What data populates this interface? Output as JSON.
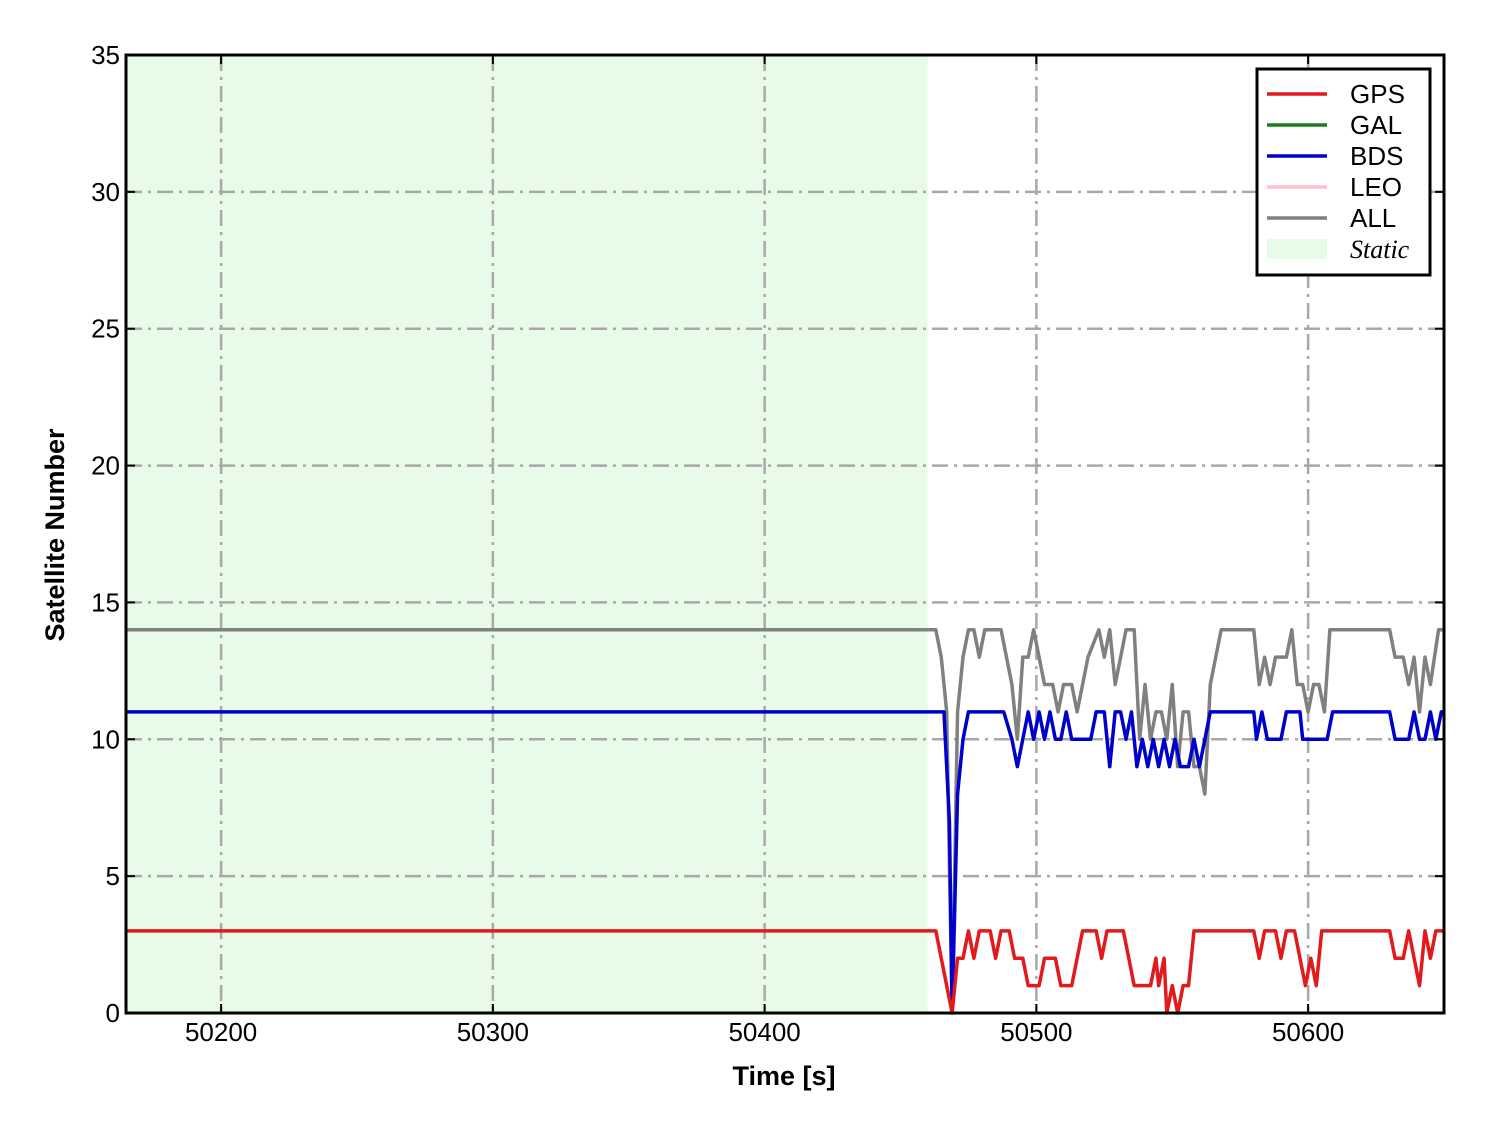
{
  "chart_data": {
    "type": "line",
    "title": "",
    "xlabel": "Time [s]",
    "ylabel": "Satellite Number",
    "xlim": [
      50165,
      50650
    ],
    "ylim": [
      0,
      35
    ],
    "xticks": [
      50200,
      50300,
      50400,
      50500,
      50600
    ],
    "yticks": [
      0,
      5,
      10,
      15,
      20,
      25,
      30,
      35
    ],
    "grid": true,
    "grid_style": "dash-dot",
    "legend_position": "top-right",
    "shaded_regions": [
      {
        "name": "Static",
        "x_start": 50165,
        "x_end": 50460,
        "color": "#e8fbe8"
      }
    ],
    "legend": [
      {
        "name": "GPS",
        "color": "#e31a1c",
        "kind": "line"
      },
      {
        "name": "GAL",
        "color": "#1a7f1a",
        "kind": "line"
      },
      {
        "name": "BDS",
        "color": "#0000cc",
        "kind": "line"
      },
      {
        "name": "LEO",
        "color": "#ffc0cb",
        "kind": "line"
      },
      {
        "name": "ALL",
        "color": "#808080",
        "kind": "line"
      },
      {
        "name": "Static",
        "color": "#e8fbe8",
        "kind": "patch"
      }
    ],
    "series": [
      {
        "name": "ALL",
        "color": "#808080",
        "points": [
          [
            50165,
            14
          ],
          [
            50463,
            14
          ],
          [
            50465,
            13
          ],
          [
            50467,
            11
          ],
          [
            50469,
            0
          ],
          [
            50471,
            11
          ],
          [
            50473,
            13
          ],
          [
            50475,
            14
          ],
          [
            50477,
            14
          ],
          [
            50479,
            13
          ],
          [
            50481,
            14
          ],
          [
            50487,
            14
          ],
          [
            50489,
            13
          ],
          [
            50491,
            12
          ],
          [
            50493,
            10
          ],
          [
            50495,
            13
          ],
          [
            50497,
            13
          ],
          [
            50499,
            14
          ],
          [
            50501,
            13
          ],
          [
            50503,
            12
          ],
          [
            50506,
            12
          ],
          [
            50508,
            11
          ],
          [
            50510,
            12
          ],
          [
            50513,
            12
          ],
          [
            50515,
            11
          ],
          [
            50517,
            12
          ],
          [
            50519,
            13
          ],
          [
            50523,
            14
          ],
          [
            50525,
            13
          ],
          [
            50527,
            14
          ],
          [
            50529,
            12
          ],
          [
            50531,
            13
          ],
          [
            50533,
            14
          ],
          [
            50536,
            14
          ],
          [
            50538,
            10
          ],
          [
            50540,
            12
          ],
          [
            50542,
            10
          ],
          [
            50544,
            11
          ],
          [
            50546,
            11
          ],
          [
            50548,
            10
          ],
          [
            50550,
            12
          ],
          [
            50552,
            9
          ],
          [
            50554,
            11
          ],
          [
            50556,
            11
          ],
          [
            50558,
            9
          ],
          [
            50560,
            9
          ],
          [
            50562,
            8
          ],
          [
            50564,
            12
          ],
          [
            50566,
            13
          ],
          [
            50568,
            14
          ],
          [
            50580,
            14
          ],
          [
            50582,
            12
          ],
          [
            50584,
            13
          ],
          [
            50586,
            12
          ],
          [
            50588,
            13
          ],
          [
            50592,
            13
          ],
          [
            50594,
            14
          ],
          [
            50596,
            12
          ],
          [
            50598,
            12
          ],
          [
            50600,
            11
          ],
          [
            50602,
            12
          ],
          [
            50604,
            12
          ],
          [
            50606,
            11
          ],
          [
            50608,
            14
          ],
          [
            50630,
            14
          ],
          [
            50632,
            13
          ],
          [
            50635,
            13
          ],
          [
            50637,
            12
          ],
          [
            50639,
            13
          ],
          [
            50641,
            11
          ],
          [
            50643,
            13
          ],
          [
            50645,
            12
          ],
          [
            50648,
            14
          ],
          [
            50650,
            14
          ]
        ]
      },
      {
        "name": "BDS",
        "color": "#0000cc",
        "points": [
          [
            50165,
            11
          ],
          [
            50463,
            11
          ],
          [
            50466,
            11
          ],
          [
            50468,
            7
          ],
          [
            50469,
            0
          ],
          [
            50471,
            8
          ],
          [
            50473,
            10
          ],
          [
            50475,
            11
          ],
          [
            50485,
            11
          ],
          [
            50488,
            11
          ],
          [
            50491,
            10
          ],
          [
            50493,
            9
          ],
          [
            50495,
            10
          ],
          [
            50497,
            11
          ],
          [
            50499,
            10
          ],
          [
            50501,
            11
          ],
          [
            50503,
            10
          ],
          [
            50505,
            11
          ],
          [
            50507,
            10
          ],
          [
            50509,
            10
          ],
          [
            50511,
            11
          ],
          [
            50513,
            10
          ],
          [
            50520,
            10
          ],
          [
            50522,
            11
          ],
          [
            50525,
            11
          ],
          [
            50527,
            9
          ],
          [
            50529,
            11
          ],
          [
            50531,
            11
          ],
          [
            50533,
            10
          ],
          [
            50535,
            11
          ],
          [
            50537,
            9
          ],
          [
            50539,
            10
          ],
          [
            50541,
            9
          ],
          [
            50543,
            10
          ],
          [
            50545,
            9
          ],
          [
            50547,
            10
          ],
          [
            50549,
            9
          ],
          [
            50551,
            10
          ],
          [
            50553,
            9
          ],
          [
            50556,
            9
          ],
          [
            50558,
            10
          ],
          [
            50560,
            9
          ],
          [
            50562,
            10
          ],
          [
            50564,
            11
          ],
          [
            50580,
            11
          ],
          [
            50581,
            10
          ],
          [
            50583,
            11
          ],
          [
            50585,
            10
          ],
          [
            50590,
            10
          ],
          [
            50592,
            11
          ],
          [
            50597,
            11
          ],
          [
            50598,
            10
          ],
          [
            50607,
            10
          ],
          [
            50609,
            11
          ],
          [
            50630,
            11
          ],
          [
            50632,
            10
          ],
          [
            50637,
            10
          ],
          [
            50639,
            11
          ],
          [
            50641,
            10
          ],
          [
            50643,
            10
          ],
          [
            50645,
            11
          ],
          [
            50647,
            10
          ],
          [
            50649,
            11
          ],
          [
            50650,
            11
          ]
        ]
      },
      {
        "name": "GPS",
        "color": "#e31a1c",
        "points": [
          [
            50165,
            3
          ],
          [
            50463,
            3
          ],
          [
            50465,
            2
          ],
          [
            50467,
            1
          ],
          [
            50469,
            0
          ],
          [
            50471,
            2
          ],
          [
            50473,
            2
          ],
          [
            50475,
            3
          ],
          [
            50477,
            2
          ],
          [
            50479,
            3
          ],
          [
            50483,
            3
          ],
          [
            50485,
            2
          ],
          [
            50487,
            3
          ],
          [
            50490,
            3
          ],
          [
            50492,
            2
          ],
          [
            50495,
            2
          ],
          [
            50497,
            1
          ],
          [
            50501,
            1
          ],
          [
            50503,
            2
          ],
          [
            50507,
            2
          ],
          [
            50509,
            1
          ],
          [
            50513,
            1
          ],
          [
            50515,
            2
          ],
          [
            50517,
            3
          ],
          [
            50522,
            3
          ],
          [
            50524,
            2
          ],
          [
            50526,
            3
          ],
          [
            50529,
            3
          ],
          [
            50532,
            3
          ],
          [
            50534,
            2
          ],
          [
            50536,
            1
          ],
          [
            50542,
            1
          ],
          [
            50544,
            2
          ],
          [
            50545,
            1
          ],
          [
            50547,
            2
          ],
          [
            50548,
            0
          ],
          [
            50550,
            1
          ],
          [
            50552,
            0
          ],
          [
            50554,
            1
          ],
          [
            50556,
            1
          ],
          [
            50558,
            3
          ],
          [
            50580,
            3
          ],
          [
            50582,
            2
          ],
          [
            50584,
            3
          ],
          [
            50588,
            3
          ],
          [
            50590,
            2
          ],
          [
            50592,
            3
          ],
          [
            50595,
            3
          ],
          [
            50597,
            2
          ],
          [
            50599,
            1
          ],
          [
            50601,
            2
          ],
          [
            50603,
            1
          ],
          [
            50605,
            3
          ],
          [
            50630,
            3
          ],
          [
            50632,
            2
          ],
          [
            50635,
            2
          ],
          [
            50637,
            3
          ],
          [
            50639,
            2
          ],
          [
            50641,
            1
          ],
          [
            50643,
            3
          ],
          [
            50645,
            2
          ],
          [
            50647,
            3
          ],
          [
            50650,
            3
          ]
        ]
      },
      {
        "name": "GAL",
        "color": "#1a7f1a",
        "points": []
      },
      {
        "name": "LEO",
        "color": "#ffc0cb",
        "points": []
      }
    ]
  }
}
